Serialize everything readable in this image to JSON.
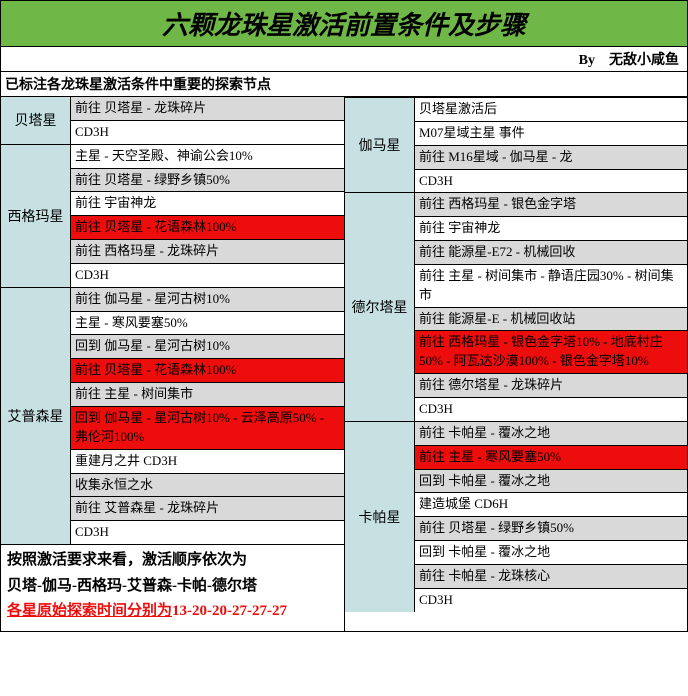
{
  "title": "六颗龙珠星激活前置条件及步骤",
  "byline_by": "By",
  "byline_author": "无敌小咸鱼",
  "subtitle": "已标注各龙珠星激活条件中重要的探索节点",
  "colors": {
    "header_bg": "#6fb847",
    "label_bg": "#c7e1e3",
    "highlight_red": "#ed0d0d",
    "gray": "#d9d9d9"
  },
  "left_sections": [
    {
      "name": "贝塔星",
      "steps": [
        {
          "text": "前往 贝塔星 - 龙珠碎片",
          "style": "gray"
        },
        {
          "text": "CD3H",
          "style": ""
        }
      ]
    },
    {
      "name": "西格玛星",
      "steps": [
        {
          "text": "主星 - 天空圣殿、神谕公会10%",
          "style": ""
        },
        {
          "text": "前往 贝塔星 - 绿野乡镇50%",
          "style": "gray"
        },
        {
          "text": "前往 宇宙神龙",
          "style": ""
        },
        {
          "text": "前往 贝塔星 - 花语森林100%",
          "style": "red"
        },
        {
          "text": "前往 西格玛星 - 龙珠碎片",
          "style": "gray"
        },
        {
          "text": "CD3H",
          "style": ""
        }
      ]
    },
    {
      "name": "艾普森星",
      "steps": [
        {
          "text": "前往 伽马星 - 星河古树10%",
          "style": "gray"
        },
        {
          "text": "主星 - 寒风要塞50%",
          "style": ""
        },
        {
          "text": "回到 伽马星 - 星河古树10%",
          "style": "gray"
        },
        {
          "text": "前往 贝塔星 - 花语森林100%",
          "style": "red"
        },
        {
          "text": "前往 主星 - 树间集市",
          "style": "gray"
        },
        {
          "text": "回到 伽马星 - 星河古树10% - 云泽高原50% - 弗伦河100%",
          "style": "red"
        },
        {
          "text": "重建月之井 CD3H",
          "style": ""
        },
        {
          "text": "收集永恒之水",
          "style": "gray"
        },
        {
          "text": "前往 艾普森星 - 龙珠碎片",
          "style": "gray"
        },
        {
          "text": "CD3H",
          "style": ""
        }
      ]
    }
  ],
  "right_sections": [
    {
      "name": "伽马星",
      "steps": [
        {
          "text": "贝塔星激活后",
          "style": ""
        },
        {
          "text": "M07星域主星 事件",
          "style": ""
        },
        {
          "text": "前往 M16星域 - 伽马星 - 龙",
          "style": "gray"
        },
        {
          "text": "CD3H",
          "style": ""
        }
      ]
    },
    {
      "name": "德尔塔星",
      "steps": [
        {
          "text": "前往 西格玛星 - 银色金字塔",
          "style": "gray"
        },
        {
          "text": "前往 宇宙神龙",
          "style": ""
        },
        {
          "text": "前往 能源星-E72 - 机械回收",
          "style": "gray"
        },
        {
          "text": "前往 主星 - 树间集市 - 静语庄园30% - 树间集市",
          "style": ""
        },
        {
          "text": "前往 能源星-E - 机械回收站",
          "style": "gray"
        },
        {
          "text": "前往 西格玛星 - 银色金字塔10% - 地底村庄50% - 阿瓦达沙漠100% - 银色金字塔10%",
          "style": "red"
        },
        {
          "text": "前往 德尔塔星 - 龙珠碎片",
          "style": "gray"
        },
        {
          "text": "CD3H",
          "style": ""
        }
      ]
    },
    {
      "name": "卡帕星",
      "steps": [
        {
          "text": "前往 卡帕星 - 覆冰之地",
          "style": "gray"
        },
        {
          "text": "前往 主星 - 寒风要塞50%",
          "style": "red"
        },
        {
          "text": "回到 卡帕星 - 覆冰之地",
          "style": "gray"
        },
        {
          "text": "建造城堡 CD6H",
          "style": ""
        },
        {
          "text": "前往 贝塔星 - 绿野乡镇50%",
          "style": "gray"
        },
        {
          "text": "回到 卡帕星 - 覆冰之地",
          "style": ""
        },
        {
          "text": "前往 卡帕星 - 龙珠核心",
          "style": "gray"
        },
        {
          "text": "CD3H",
          "style": ""
        }
      ]
    }
  ],
  "footer": {
    "line1": "按照激活要求来看，激活顺序依次为",
    "line2": "贝塔-伽马-西格玛-艾普森-卡帕-德尔塔",
    "line3_label": "各星原始探索时间分别为",
    "line3_values": "13-20-20-27-27-27"
  }
}
